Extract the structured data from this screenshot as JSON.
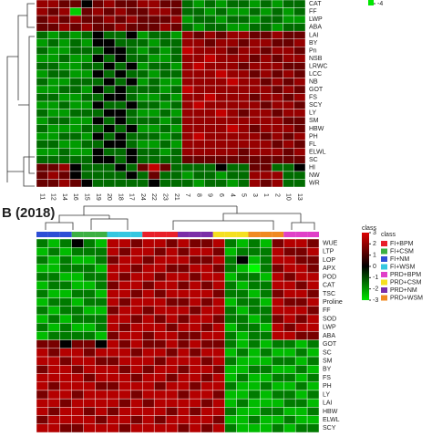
{
  "chart_data": [
    {
      "type": "heatmap",
      "zlim": [
        -4,
        4
      ],
      "legend_ticks": [
        -4
      ],
      "rows": [
        "CAT",
        "FF",
        "LWP",
        "ABA",
        "LAI",
        "BY",
        "Pn",
        "NSB",
        "LRWC",
        "LCC",
        "NB",
        "GOT",
        "FS",
        "SCY",
        "LY",
        "SM",
        "HBW",
        "PH",
        "FL",
        "ELWL",
        "SC",
        "HI",
        "NW",
        "WR"
      ],
      "columns": [
        "11",
        "12",
        "14",
        "16",
        "15",
        "19",
        "20",
        "18",
        "17",
        "24",
        "22",
        "23",
        "21",
        "7",
        "8",
        "9",
        "6",
        "4",
        "5",
        "3",
        "1",
        "2",
        "10",
        "13"
      ],
      "values": [
        [
          2,
          2,
          1,
          1,
          0,
          1,
          2,
          1,
          1,
          2,
          2,
          1,
          1,
          -1,
          -2,
          -1,
          -2,
          -1,
          -1,
          -2,
          -1,
          -2,
          -1,
          -1
        ],
        [
          2,
          1,
          2,
          -3,
          1,
          2,
          1,
          2,
          1,
          1,
          2,
          2,
          1,
          -1,
          -1,
          -2,
          -1,
          -2,
          -2,
          -1,
          -2,
          -1,
          -2,
          -1
        ],
        [
          1,
          2,
          1,
          2,
          1,
          1,
          2,
          1,
          2,
          1,
          1,
          1,
          2,
          -2,
          -1,
          -1,
          -2,
          -1,
          -1,
          -2,
          -1,
          -1,
          -2,
          -2
        ],
        [
          1,
          1,
          2,
          1,
          2,
          1,
          1,
          2,
          1,
          1,
          1,
          2,
          1,
          -1,
          -2,
          -1,
          -1,
          -2,
          -2,
          -1,
          -1,
          -2,
          -1,
          -1
        ],
        [
          -1,
          -2,
          -1,
          -2,
          -1,
          0,
          -1,
          -1,
          0,
          -2,
          -1,
          -1,
          -2,
          2,
          1,
          2,
          1,
          2,
          2,
          1,
          1,
          2,
          1,
          1
        ],
        [
          -2,
          -1,
          -2,
          -1,
          -2,
          0,
          0,
          -1,
          -1,
          -1,
          -2,
          -1,
          -1,
          2,
          2,
          1,
          2,
          2,
          1,
          2,
          2,
          1,
          1,
          2
        ],
        [
          -1,
          -2,
          -2,
          -1,
          -1,
          -1,
          0,
          0,
          -1,
          -2,
          -1,
          -2,
          -1,
          3,
          2,
          2,
          2,
          1,
          2,
          2,
          1,
          2,
          2,
          1
        ],
        [
          -2,
          -2,
          -1,
          -2,
          -2,
          0,
          -1,
          0,
          -1,
          -1,
          -2,
          -2,
          -1,
          2,
          2,
          3,
          2,
          2,
          2,
          1,
          2,
          1,
          2,
          2
        ],
        [
          -1,
          -1,
          -2,
          -2,
          -1,
          -1,
          0,
          -1,
          0,
          -2,
          -1,
          -1,
          -2,
          2,
          3,
          2,
          2,
          2,
          1,
          2,
          2,
          2,
          1,
          1
        ],
        [
          -2,
          -1,
          -1,
          -2,
          -2,
          0,
          -1,
          0,
          -1,
          -1,
          -2,
          -1,
          -1,
          2,
          2,
          2,
          3,
          2,
          2,
          1,
          2,
          1,
          2,
          1
        ],
        [
          -1,
          -2,
          -2,
          -1,
          -1,
          -1,
          0,
          -1,
          0,
          -2,
          -1,
          -2,
          -2,
          2,
          2,
          2,
          2,
          3,
          2,
          2,
          1,
          2,
          1,
          2
        ],
        [
          -2,
          -2,
          -1,
          -1,
          -2,
          0,
          -1,
          0,
          -1,
          -1,
          -1,
          -2,
          -1,
          3,
          2,
          2,
          2,
          2,
          2,
          2,
          2,
          1,
          2,
          1
        ],
        [
          -1,
          -1,
          -2,
          -2,
          -1,
          -1,
          0,
          0,
          -1,
          -2,
          -2,
          -1,
          -2,
          2,
          2,
          3,
          2,
          2,
          2,
          1,
          2,
          2,
          1,
          2
        ],
        [
          -2,
          -2,
          -1,
          -2,
          -2,
          0,
          -1,
          -1,
          0,
          -1,
          -1,
          -2,
          -1,
          2,
          3,
          2,
          2,
          2,
          2,
          2,
          1,
          2,
          2,
          1
        ],
        [
          -1,
          -2,
          -2,
          -1,
          -1,
          -1,
          0,
          0,
          -1,
          -2,
          -2,
          -1,
          -2,
          2,
          2,
          2,
          3,
          2,
          1,
          2,
          2,
          1,
          2,
          2
        ],
        [
          -2,
          -1,
          -1,
          -2,
          -2,
          0,
          -1,
          0,
          -1,
          -1,
          -1,
          -2,
          -1,
          2,
          2,
          2,
          2,
          2,
          2,
          2,
          2,
          2,
          1,
          1
        ],
        [
          -1,
          -2,
          -2,
          -2,
          -1,
          -1,
          0,
          -1,
          0,
          -2,
          -2,
          -1,
          -2,
          2,
          2,
          2,
          2,
          3,
          2,
          1,
          2,
          2,
          2,
          1
        ],
        [
          -2,
          -2,
          -1,
          -1,
          -2,
          0,
          -1,
          0,
          -1,
          -1,
          -1,
          -2,
          -1,
          2,
          3,
          2,
          2,
          2,
          2,
          2,
          1,
          2,
          1,
          2
        ],
        [
          -1,
          -1,
          -2,
          -2,
          -1,
          -1,
          0,
          0,
          -1,
          -2,
          -2,
          -1,
          -2,
          2,
          2,
          2,
          2,
          2,
          2,
          2,
          2,
          1,
          2,
          1
        ],
        [
          -2,
          -2,
          -1,
          -2,
          -2,
          0,
          -1,
          -1,
          0,
          -1,
          -1,
          -2,
          -1,
          2,
          2,
          2,
          2,
          2,
          1,
          2,
          2,
          2,
          1,
          2
        ],
        [
          -1,
          -1,
          -1,
          -1,
          -1,
          0,
          0,
          -1,
          0,
          -1,
          -1,
          -1,
          -1,
          1,
          1,
          1,
          1,
          1,
          1,
          1,
          1,
          1,
          1,
          1
        ],
        [
          1,
          1,
          2,
          0,
          -1,
          -1,
          -1,
          0,
          -1,
          1,
          3,
          1,
          -1,
          -1,
          -1,
          -1,
          0,
          -1,
          -1,
          1,
          1,
          -1,
          -1,
          0
        ],
        [
          1,
          2,
          1,
          0,
          -1,
          -1,
          -1,
          -1,
          0,
          -1,
          1,
          -1,
          -1,
          -2,
          -1,
          -1,
          -2,
          -1,
          -1,
          2,
          2,
          2,
          -1,
          -1
        ],
        [
          1,
          1,
          2,
          1,
          0,
          -1,
          -1,
          -1,
          -1,
          -1,
          0,
          -1,
          -1,
          -1,
          -2,
          -1,
          -1,
          -2,
          -1,
          2,
          1,
          2,
          -1,
          -1
        ]
      ]
    },
    {
      "type": "heatmap",
      "title": "B (2018)",
      "zlim": [
        -3,
        3
      ],
      "legend_ticks": [
        3,
        2,
        1,
        0,
        -1,
        -2,
        -3
      ],
      "legend_title": "class",
      "classes": {
        "title": "class",
        "names": [
          "FI+BPM",
          "FI+CSM",
          "FI+NM",
          "FI+WSM",
          "PRD+BPM",
          "PRD+CSM",
          "PRD+NM",
          "PRD+WSM"
        ],
        "colors": [
          "#e8202a",
          "#3cb043",
          "#2e4fd6",
          "#35c7e0",
          "#e040c8",
          "#f5e020",
          "#7b2ea8",
          "#f08a20"
        ]
      },
      "column_classes": [
        "FI+NM",
        "FI+NM",
        "FI+NM",
        "FI+CSM",
        "FI+CSM",
        "FI+CSM",
        "FI+WSM",
        "FI+WSM",
        "FI+WSM",
        "FI+BPM",
        "FI+BPM",
        "FI+BPM",
        "PRD+NM",
        "PRD+NM",
        "PRD+NM",
        "PRD+CSM",
        "PRD+CSM",
        "PRD+CSM",
        "PRD+WSM",
        "PRD+WSM",
        "PRD+WSM",
        "PRD+BPM",
        "PRD+BPM",
        "PRD+BPM"
      ],
      "rows": [
        "WUE",
        "LTP",
        "LOP",
        "APX",
        "POD",
        "CAT",
        "TSC",
        "Proline",
        "FF",
        "SOD",
        "LWP",
        "ABA",
        "GOT",
        "SC",
        "SM",
        "BY",
        "FS",
        "PH",
        "LY",
        "LAI",
        "HBW",
        "ELWL",
        "SCY"
      ],
      "values": [
        [
          -1,
          -2,
          -1,
          0,
          -1,
          -2,
          2,
          2,
          1,
          2,
          2,
          1,
          2,
          1,
          1,
          2,
          -1,
          -2,
          -1,
          -2,
          1,
          2,
          2,
          1
        ],
        [
          -2,
          -1,
          -2,
          -1,
          -1,
          -1,
          2,
          1,
          2,
          2,
          1,
          2,
          1,
          2,
          2,
          1,
          -2,
          -1,
          -1,
          -1,
          2,
          1,
          1,
          2
        ],
        [
          -1,
          -2,
          -1,
          -2,
          -2,
          -1,
          1,
          2,
          2,
          1,
          2,
          2,
          2,
          1,
          1,
          2,
          -1,
          0,
          -2,
          -1,
          2,
          2,
          1,
          1
        ],
        [
          -2,
          -2,
          -1,
          -1,
          -1,
          -2,
          2,
          2,
          1,
          2,
          2,
          1,
          1,
          2,
          2,
          1,
          -1,
          -2,
          -3,
          -1,
          1,
          2,
          2,
          1
        ],
        [
          -1,
          -1,
          -2,
          -2,
          -1,
          -1,
          2,
          1,
          2,
          2,
          1,
          2,
          2,
          1,
          2,
          2,
          -2,
          -1,
          -1,
          -2,
          2,
          1,
          2,
          2
        ],
        [
          -2,
          -1,
          -1,
          -2,
          -2,
          -1,
          1,
          2,
          2,
          1,
          2,
          2,
          1,
          2,
          1,
          2,
          -1,
          -2,
          -1,
          -1,
          2,
          2,
          1,
          2
        ],
        [
          -1,
          -2,
          -2,
          -1,
          -1,
          -2,
          2,
          2,
          1,
          2,
          1,
          2,
          2,
          2,
          2,
          1,
          -1,
          -1,
          -2,
          -1,
          1,
          2,
          2,
          1
        ],
        [
          -2,
          -1,
          -1,
          -2,
          -1,
          -1,
          2,
          1,
          2,
          2,
          2,
          1,
          1,
          2,
          1,
          2,
          -2,
          -1,
          -1,
          -2,
          2,
          1,
          1,
          2
        ],
        [
          -1,
          -2,
          -1,
          -1,
          -2,
          -2,
          1,
          2,
          2,
          1,
          2,
          2,
          2,
          1,
          2,
          2,
          -1,
          -2,
          -1,
          -1,
          2,
          2,
          2,
          1
        ],
        [
          -2,
          -1,
          -2,
          -1,
          -1,
          -1,
          2,
          2,
          1,
          2,
          1,
          2,
          1,
          2,
          2,
          1,
          -1,
          -1,
          -2,
          -1,
          1,
          2,
          1,
          2
        ],
        [
          -1,
          -2,
          -1,
          -2,
          -2,
          -1,
          2,
          1,
          2,
          2,
          2,
          1,
          2,
          2,
          1,
          2,
          -2,
          -1,
          -1,
          -2,
          2,
          1,
          2,
          2
        ],
        [
          -2,
          -1,
          -1,
          -1,
          -1,
          -2,
          1,
          2,
          2,
          1,
          2,
          2,
          1,
          1,
          2,
          2,
          -1,
          -2,
          -1,
          -1,
          2,
          2,
          1,
          1
        ],
        [
          1,
          1,
          0,
          1,
          1,
          0,
          2,
          1,
          2,
          1,
          1,
          2,
          1,
          2,
          1,
          1,
          -1,
          -2,
          -1,
          -2,
          -1,
          -1,
          -2,
          -1
        ],
        [
          2,
          1,
          2,
          2,
          1,
          2,
          2,
          2,
          1,
          2,
          2,
          1,
          2,
          1,
          2,
          2,
          -2,
          -1,
          -2,
          -1,
          -2,
          -2,
          -1,
          -2
        ],
        [
          2,
          2,
          1,
          2,
          2,
          1,
          1,
          2,
          2,
          2,
          1,
          2,
          2,
          2,
          1,
          2,
          -1,
          -2,
          -2,
          -2,
          -1,
          -1,
          -2,
          -1
        ],
        [
          1,
          2,
          2,
          1,
          2,
          2,
          2,
          1,
          2,
          1,
          2,
          2,
          1,
          2,
          2,
          1,
          -2,
          -2,
          -1,
          -1,
          -2,
          -2,
          -1,
          -2
        ],
        [
          2,
          2,
          2,
          2,
          1,
          2,
          2,
          2,
          1,
          2,
          2,
          1,
          2,
          2,
          1,
          2,
          -2,
          -1,
          -2,
          -2,
          -1,
          -1,
          -2,
          -1
        ],
        [
          2,
          1,
          2,
          2,
          2,
          1,
          1,
          2,
          2,
          2,
          1,
          2,
          2,
          1,
          2,
          2,
          -1,
          -2,
          -2,
          -1,
          -2,
          -2,
          -1,
          -2
        ],
        [
          1,
          2,
          2,
          1,
          2,
          2,
          2,
          2,
          1,
          2,
          2,
          2,
          1,
          2,
          2,
          1,
          -2,
          -2,
          -1,
          -2,
          -1,
          -1,
          -2,
          -1
        ],
        [
          2,
          2,
          1,
          2,
          2,
          2,
          2,
          1,
          2,
          1,
          2,
          2,
          2,
          2,
          1,
          2,
          -2,
          -1,
          -2,
          -2,
          -2,
          -1,
          -1,
          -2
        ],
        [
          2,
          1,
          2,
          2,
          1,
          2,
          1,
          2,
          2,
          2,
          2,
          1,
          2,
          1,
          2,
          2,
          -1,
          -2,
          -2,
          -1,
          -1,
          -2,
          -2,
          -1
        ],
        [
          1,
          2,
          2,
          2,
          2,
          1,
          2,
          2,
          1,
          2,
          1,
          2,
          2,
          2,
          2,
          1,
          -2,
          -2,
          -1,
          -2,
          -2,
          -1,
          -2,
          -2
        ],
        [
          2,
          2,
          1,
          1,
          2,
          2,
          2,
          1,
          2,
          2,
          2,
          2,
          1,
          2,
          1,
          2,
          -1,
          -2,
          -2,
          -2,
          -1,
          -2,
          -1,
          -1
        ]
      ]
    }
  ]
}
